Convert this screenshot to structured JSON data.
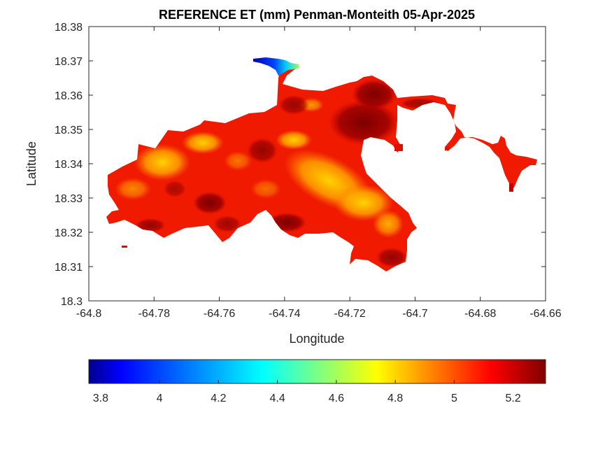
{
  "title": "REFERENCE ET (mm) Penman-Monteith 05-Apr-2025",
  "map": {
    "type": "filled-contour map",
    "xlabel": "Longitude",
    "ylabel": "Latitude",
    "xlim": [
      -64.8,
      -64.66
    ],
    "ylim": [
      18.3,
      18.38
    ],
    "x_ticks": [
      "-64.8",
      "-64.78",
      "-64.76",
      "-64.74",
      "-64.72",
      "-64.7",
      "-64.68",
      "-64.66"
    ],
    "y_ticks": [
      "18.3",
      "18.31",
      "18.32",
      "18.33",
      "18.34",
      "18.35",
      "18.36",
      "18.37",
      "18.38"
    ],
    "colormap": "jet",
    "high_value_areas": "dark red in the northeast near -64.72, 18.35",
    "low_value_area": "blue at the northern tip near -64.745, 18.37"
  },
  "colorbar": {
    "range": [
      3.76,
      5.31
    ],
    "ticks": [
      "3.8",
      "4",
      "4.2",
      "4.4",
      "4.6",
      "4.8",
      "5",
      "5.2"
    ],
    "colors": [
      "#00008f",
      "#0000ff",
      "#00ffff",
      "#ffff00",
      "#ff0000",
      "#800000"
    ]
  }
}
